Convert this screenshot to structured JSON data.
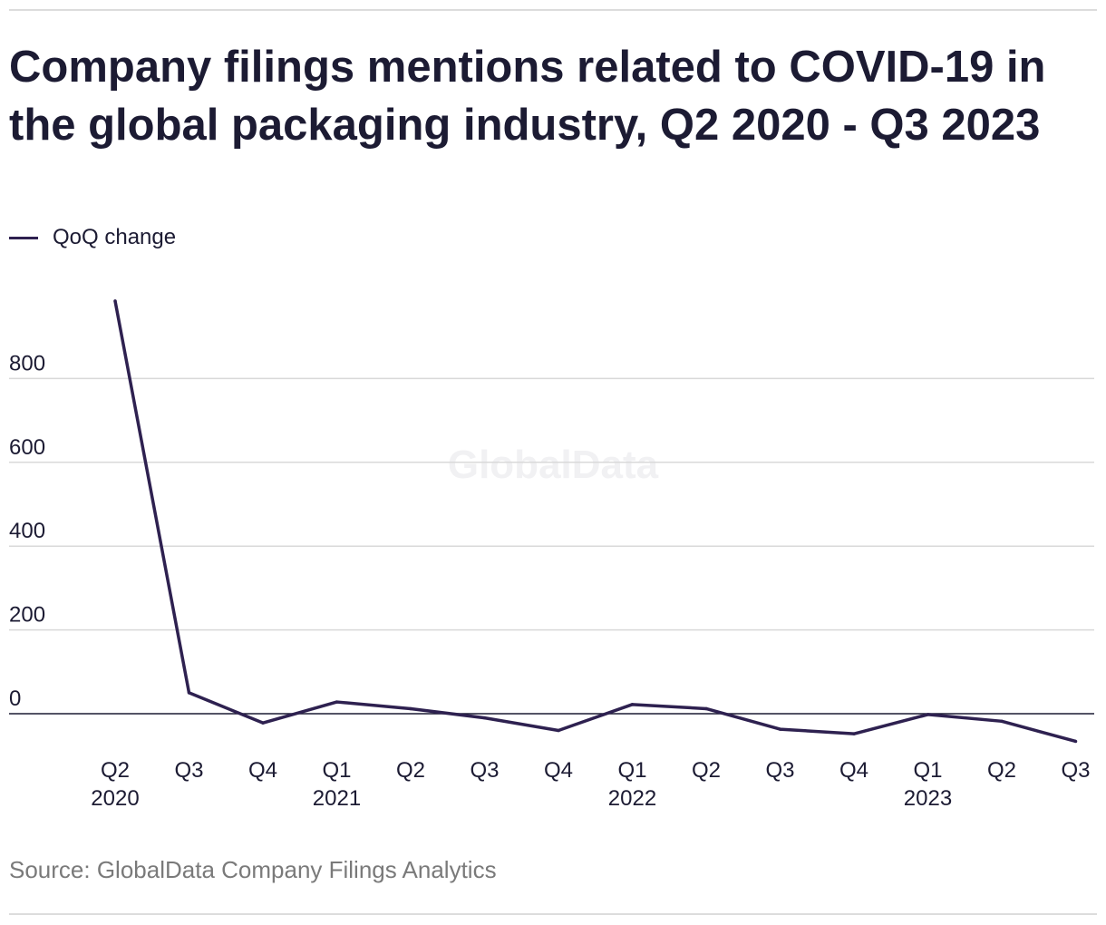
{
  "title": "Company filings mentions related to COVID-19 in the global packaging industry, Q2 2020 - Q3 2023",
  "legend": {
    "label": "QoQ change",
    "color": "#2e2150"
  },
  "watermark": "GlobalData",
  "source": "Source: GlobalData Company Filings Analytics",
  "chart_data": {
    "type": "line",
    "title": "Company filings mentions related to COVID-19 in the global packaging industry, Q2 2020 - Q3 2023",
    "xlabel": "",
    "ylabel": "",
    "categories": [
      "Q2 2020",
      "Q3 2020",
      "Q4 2020",
      "Q1 2021",
      "Q2 2021",
      "Q3 2021",
      "Q4 2021",
      "Q1 2022",
      "Q2 2022",
      "Q3 2022",
      "Q4 2022",
      "Q1 2023",
      "Q2 2023",
      "Q3 2023"
    ],
    "x_tick_labels": [
      {
        "quarter": "Q2",
        "year": "2020"
      },
      {
        "quarter": "Q3",
        "year": ""
      },
      {
        "quarter": "Q4",
        "year": ""
      },
      {
        "quarter": "Q1",
        "year": "2021"
      },
      {
        "quarter": "Q2",
        "year": ""
      },
      {
        "quarter": "Q3",
        "year": ""
      },
      {
        "quarter": "Q4",
        "year": ""
      },
      {
        "quarter": "Q1",
        "year": "2022"
      },
      {
        "quarter": "Q2",
        "year": ""
      },
      {
        "quarter": "Q3",
        "year": ""
      },
      {
        "quarter": "Q4",
        "year": ""
      },
      {
        "quarter": "Q1",
        "year": "2023"
      },
      {
        "quarter": "Q2",
        "year": ""
      },
      {
        "quarter": "Q3",
        "year": ""
      }
    ],
    "series": [
      {
        "name": "QoQ change",
        "values": [
          985,
          50,
          -22,
          28,
          12,
          -10,
          -40,
          22,
          12,
          -37,
          -48,
          -2,
          -18,
          -66
        ]
      }
    ],
    "ylim": [
      -80,
      985
    ],
    "yticks": [
      0,
      200,
      400,
      600,
      800
    ],
    "grid": true,
    "legend_position": "top-left",
    "line_color": "#2e2150"
  }
}
